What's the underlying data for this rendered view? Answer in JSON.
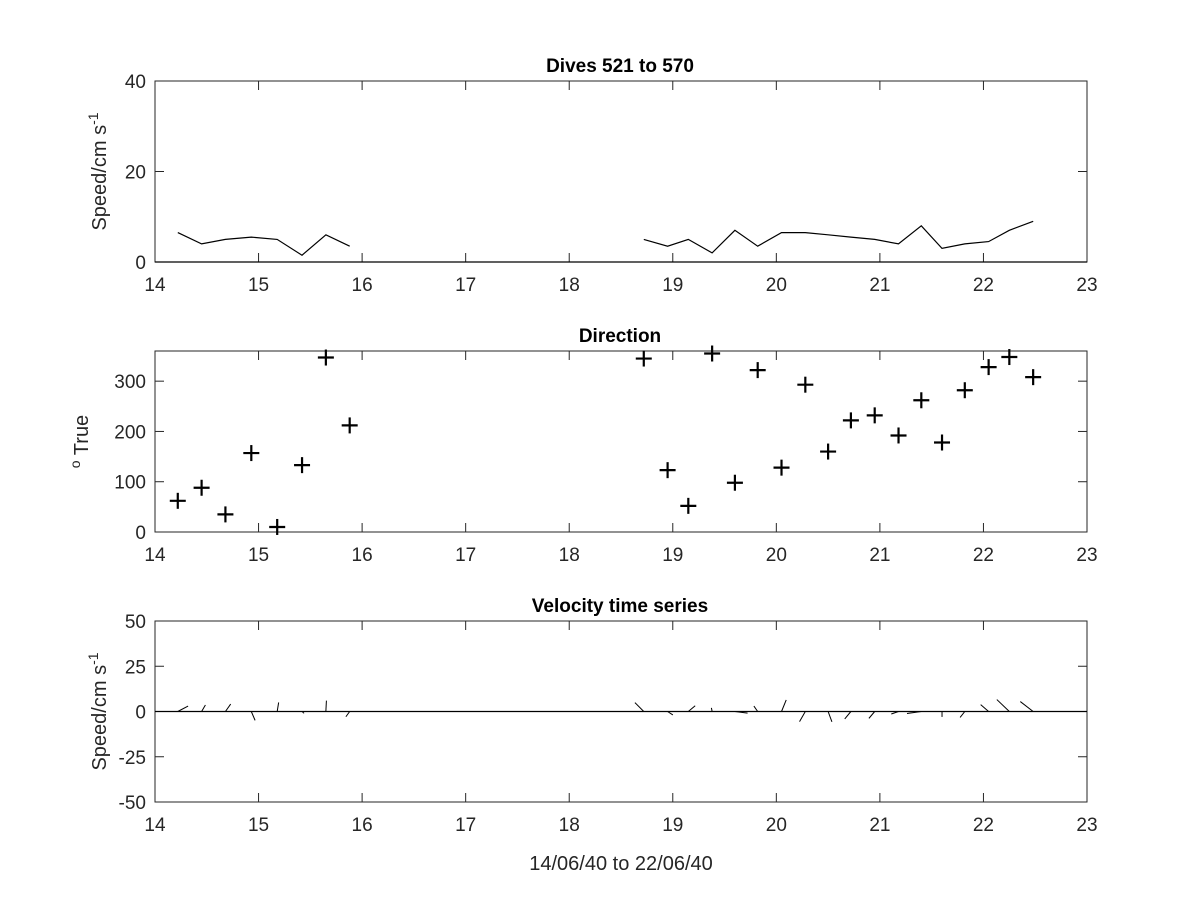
{
  "chart_data": [
    {
      "type": "line",
      "title": "Dives 521 to 570",
      "ylabel": "Speed/cm s",
      "ylabel_sup": "-1",
      "xlim": [
        14,
        23
      ],
      "ylim": [
        0,
        40
      ],
      "xticks": [
        14,
        15,
        16,
        17,
        18,
        19,
        20,
        21,
        22,
        23
      ],
      "yticks": [
        0,
        20,
        40
      ],
      "segments": [
        {
          "x": [
            14.22,
            14.45,
            14.68,
            14.93,
            15.18,
            15.42,
            15.65,
            15.88
          ],
          "y": [
            6.5,
            4.0,
            5.0,
            5.5,
            5.0,
            1.5,
            6.0,
            3.5
          ]
        },
        {
          "x": [
            18.72,
            18.95,
            19.15,
            19.38,
            19.6,
            19.82,
            20.05,
            20.28,
            20.5,
            20.72,
            20.95,
            21.18,
            21.4,
            21.6,
            21.82,
            22.05,
            22.25,
            22.48
          ],
          "y": [
            5.0,
            3.5,
            5.0,
            2.0,
            7.0,
            3.5,
            6.5,
            6.5,
            6.0,
            5.5,
            5.0,
            4.0,
            8.0,
            3.0,
            4.0,
            4.5,
            7.0,
            9.0
          ]
        }
      ]
    },
    {
      "type": "scatter",
      "title": "Direction",
      "ylabel": " True",
      "ylabel_sup": "o",
      "xlim": [
        14,
        23
      ],
      "ylim": [
        0,
        360
      ],
      "xticks": [
        14,
        15,
        16,
        17,
        18,
        19,
        20,
        21,
        22,
        23
      ],
      "yticks": [
        0,
        100,
        200,
        300
      ],
      "marker": "+",
      "x": [
        14.22,
        14.45,
        14.68,
        14.93,
        15.18,
        15.42,
        15.65,
        15.88,
        18.72,
        18.95,
        19.15,
        19.38,
        19.6,
        19.82,
        20.05,
        20.28,
        20.5,
        20.72,
        20.95,
        21.18,
        21.4,
        21.6,
        21.82,
        22.05,
        22.25,
        22.48
      ],
      "y": [
        62,
        88,
        35,
        157,
        10,
        133,
        347,
        212,
        345,
        123,
        52,
        355,
        98,
        322,
        128,
        293,
        160,
        222,
        232,
        192,
        262,
        178,
        282,
        328,
        348,
        308
      ]
    },
    {
      "type": "stick",
      "title": "Velocity time series",
      "ylabel": "Speed/cm s",
      "ylabel_sup": "-1",
      "xlabel": "14/06/40 to 22/06/40",
      "xlim": [
        14,
        23
      ],
      "ylim": [
        -50,
        50
      ],
      "xticks": [
        14,
        15,
        16,
        17,
        18,
        19,
        20,
        21,
        22,
        23
      ],
      "yticks": [
        -50,
        -25,
        0,
        25,
        50
      ],
      "x": [
        14.22,
        14.45,
        14.68,
        14.93,
        15.18,
        15.42,
        15.65,
        15.88,
        18.72,
        18.95,
        19.15,
        19.38,
        19.6,
        19.82,
        20.05,
        20.28,
        20.5,
        20.72,
        20.95,
        21.18,
        21.4,
        21.6,
        21.82,
        22.05,
        22.25,
        22.48
      ],
      "u": [
        5.7,
        2.1,
        2.9,
        2.1,
        0.8,
        1.1,
        0.3,
        -2.1,
        -4.9,
        2.9,
        3.8,
        -0.4,
        7.0,
        -2.1,
        2.6,
        -3.2,
        2.1,
        -3.4,
        -3.2,
        -4.0,
        -7.9,
        0.0,
        -2.6,
        -4.4,
        -6.9,
        -7.1
      ],
      "v": [
        3.0,
        3.6,
        4.1,
        -4.9,
        5.0,
        -1.0,
        6.0,
        -2.9,
        4.9,
        -1.9,
        3.2,
        2.0,
        -0.9,
        3.0,
        6.4,
        -5.6,
        -5.7,
        -4.1,
        -3.8,
        -1.4,
        -1.1,
        -3.0,
        -3.3,
        3.8,
        6.6,
        5.5
      ]
    }
  ]
}
